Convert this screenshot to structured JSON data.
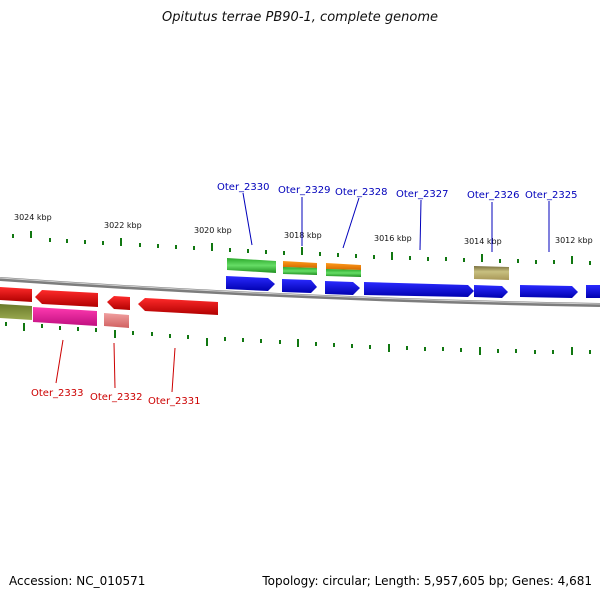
{
  "title": "Opitutus terrae PB90-1, complete genome",
  "footer": {
    "accession": "Accession: NC_010571",
    "summary": "Topology: circular; Length: 5,957,605 bp; Genes: 4,681"
  },
  "ruler": {
    "labels": [
      "3024 kbp",
      "3022 kbp",
      "3020 kbp",
      "3018 kbp",
      "3016 kbp",
      "3014 kbp",
      "3012 kbp"
    ]
  },
  "genes": {
    "top": [
      "Oter_2330",
      "Oter_2329",
      "Oter_2328",
      "Oter_2327",
      "Oter_2326",
      "Oter_2325"
    ],
    "bottom": [
      "Oter_2333",
      "Oter_2332",
      "Oter_2331"
    ]
  },
  "colors": {
    "forward_strand": "#0000ee",
    "reverse_strand": "#ee0000",
    "tick": "#117711",
    "backbone": "#888888",
    "top_label": "#0000bb",
    "bottom_label": "#cc0000"
  }
}
